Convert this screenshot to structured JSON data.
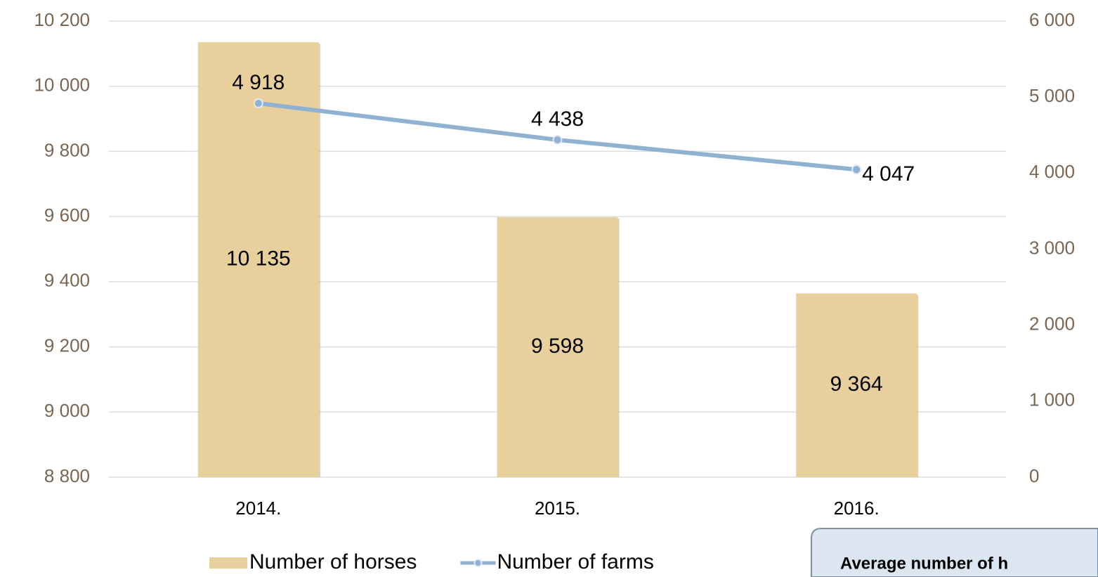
{
  "chart_data": {
    "type": "bar_line",
    "categories": [
      "2014.",
      "2015.",
      "2016."
    ],
    "series": [
      {
        "name": "Number of horses",
        "type": "bar",
        "color": "#e8d09c",
        "values": [
          10135,
          9598,
          9364
        ],
        "value_labels": [
          "10 135",
          "9 598",
          "9 364"
        ]
      },
      {
        "name": "Number of farms",
        "type": "line",
        "axis": "y2",
        "color": "#8fb1d2",
        "values": [
          4918,
          4438,
          4047
        ],
        "value_labels": [
          "4 918",
          "4 438",
          "4 047"
        ]
      }
    ],
    "ylim": [
      8800,
      10200
    ],
    "yticks": [
      {
        "value": 8800,
        "label": "8 800"
      },
      {
        "value": 9000,
        "label": "9 000"
      },
      {
        "value": 9200,
        "label": "9 200"
      },
      {
        "value": 9400,
        "label": "9 400"
      },
      {
        "value": 9600,
        "label": "9 600"
      },
      {
        "value": 9800,
        "label": "9 800"
      },
      {
        "value": 10000,
        "label": "10 000"
      },
      {
        "value": 10200,
        "label": "10 200"
      }
    ],
    "y2lim": [
      0,
      6000
    ],
    "y2ticks": [
      0,
      {
        "value": 1000,
        "label": "1 000"
      },
      {
        "value": 2000,
        "label": "2 000"
      },
      {
        "value": 3000,
        "label": "3 000"
      },
      {
        "value": 4000,
        "label": "4 000"
      },
      {
        "value": 5000,
        "label": "5 000"
      },
      {
        "value": 6000,
        "label": "6 000"
      }
    ],
    "grid": true,
    "legend": "bottom",
    "annotation": "Average number of h"
  }
}
